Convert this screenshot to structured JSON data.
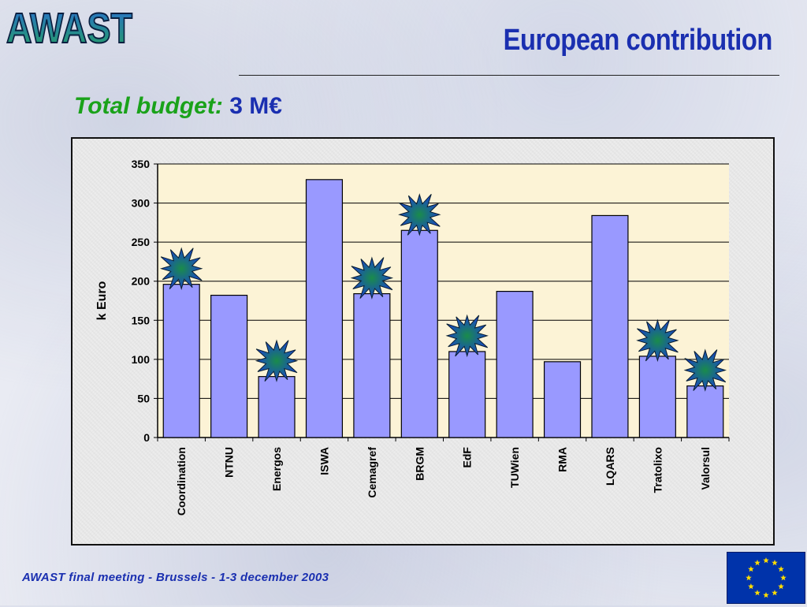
{
  "header": {
    "logo_text": "AWAST",
    "title": "European contribution"
  },
  "budget": {
    "label": "Total budget:",
    "value": "3 M€"
  },
  "footer": {
    "text": "AWAST final meeting - Brussels - 1-3 december 2003"
  },
  "colors": {
    "title": "#1a2fb0",
    "budget_label": "#1aa21a",
    "bar_fill": "#9999ff",
    "plot_bg": "#fcf3d6",
    "star_gradient_outer": "#1a3fd6",
    "star_gradient_inner": "#1a8c4a",
    "eu_blue": "#0033aa",
    "eu_star": "#ffdd00"
  },
  "chart_data": {
    "type": "bar",
    "title": "",
    "xlabel": "",
    "ylabel": "k Euro",
    "ylim": [
      0,
      350
    ],
    "yticks": [
      0,
      50,
      100,
      150,
      200,
      250,
      300,
      350
    ],
    "grid": true,
    "categories": [
      "Coordination",
      "NTNU",
      "Energos",
      "ISWA",
      "Cemagref",
      "BRGM",
      "EdF",
      "TUWien",
      "RMA",
      "LQARS",
      "Tratolixo",
      "Valorsul"
    ],
    "values": [
      196,
      182,
      78,
      330,
      184,
      265,
      110,
      187,
      97,
      284,
      104,
      66
    ],
    "starred": [
      "Coordination",
      "Energos",
      "Cemagref",
      "BRGM",
      "EdF",
      "Tratolixo",
      "Valorsul"
    ]
  }
}
